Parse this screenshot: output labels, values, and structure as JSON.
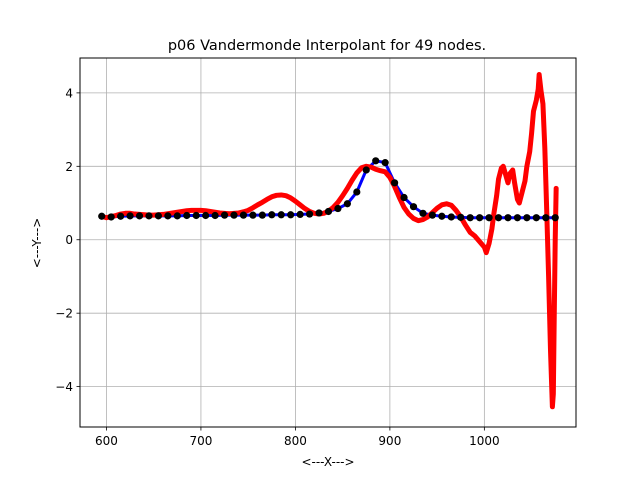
{
  "chart_data": {
    "type": "line",
    "title": "p06 Vandermonde Interpolant for 49 nodes.",
    "xlabel": "<---X--->",
    "ylabel": "<---Y--->",
    "xlim": [
      572,
      1097
    ],
    "ylim": [
      -5.1,
      4.95
    ],
    "xticks": [
      600,
      700,
      800,
      900,
      1000
    ],
    "yticks": [
      -4,
      -2,
      0,
      2,
      4
    ],
    "grid": true,
    "legend": "none",
    "series": [
      {
        "role": "data",
        "color": "#0000ff",
        "x": [
          595,
          605,
          615,
          625,
          635,
          645,
          655,
          665,
          675,
          685,
          695,
          705,
          715,
          725,
          735,
          745,
          755,
          765,
          775,
          785,
          795,
          805,
          815,
          825,
          835,
          845,
          855,
          865,
          875,
          885,
          895,
          905,
          915,
          925,
          935,
          945,
          955,
          965,
          975,
          985,
          995,
          1005,
          1015,
          1025,
          1035,
          1045,
          1055,
          1065,
          1075
        ],
        "y": [
          0.64,
          0.62,
          0.64,
          0.65,
          0.65,
          0.65,
          0.65,
          0.65,
          0.65,
          0.66,
          0.66,
          0.66,
          0.66,
          0.67,
          0.67,
          0.67,
          0.67,
          0.67,
          0.68,
          0.68,
          0.68,
          0.69,
          0.7,
          0.73,
          0.77,
          0.85,
          0.98,
          1.3,
          1.9,
          2.15,
          2.1,
          1.55,
          1.15,
          0.9,
          0.72,
          0.67,
          0.64,
          0.62,
          0.61,
          0.6,
          0.6,
          0.6,
          0.6,
          0.6,
          0.6,
          0.6,
          0.6,
          0.6,
          0.6
        ]
      },
      {
        "role": "nodes",
        "color": "#000000",
        "x": [
          595,
          605,
          615,
          625,
          635,
          645,
          655,
          665,
          675,
          685,
          695,
          705,
          715,
          725,
          735,
          745,
          755,
          765,
          775,
          785,
          795,
          805,
          815,
          825,
          835,
          845,
          855,
          865,
          875,
          885,
          895,
          905,
          915,
          925,
          935,
          945,
          955,
          965,
          975,
          985,
          995,
          1005,
          1015,
          1025,
          1035,
          1045,
          1055,
          1065,
          1075
        ],
        "y": [
          0.64,
          0.62,
          0.64,
          0.65,
          0.65,
          0.65,
          0.65,
          0.65,
          0.65,
          0.66,
          0.66,
          0.66,
          0.66,
          0.67,
          0.67,
          0.67,
          0.67,
          0.67,
          0.68,
          0.68,
          0.68,
          0.69,
          0.7,
          0.73,
          0.77,
          0.85,
          0.98,
          1.3,
          1.9,
          2.15,
          2.1,
          1.55,
          1.15,
          0.9,
          0.72,
          0.67,
          0.64,
          0.62,
          0.61,
          0.6,
          0.6,
          0.6,
          0.6,
          0.6,
          0.6,
          0.6,
          0.6,
          0.6,
          0.6
        ]
      },
      {
        "role": "interpolant",
        "color": "#ff0000",
        "x": [
          595,
          600,
          605,
          610,
          615,
          620,
          625,
          630,
          635,
          640,
          645,
          650,
          655,
          660,
          665,
          670,
          675,
          680,
          685,
          690,
          695,
          700,
          705,
          710,
          715,
          720,
          725,
          730,
          735,
          740,
          745,
          750,
          755,
          760,
          765,
          770,
          775,
          780,
          785,
          790,
          795,
          800,
          805,
          810,
          815,
          820,
          825,
          830,
          835,
          840,
          845,
          850,
          855,
          860,
          865,
          870,
          875,
          880,
          885,
          890,
          895,
          900,
          905,
          910,
          915,
          920,
          925,
          930,
          935,
          940,
          945,
          950,
          955,
          960,
          965,
          970,
          975,
          980,
          985,
          990,
          995,
          1000,
          1002,
          1005,
          1008,
          1010,
          1013,
          1015,
          1018,
          1020,
          1022,
          1025,
          1027,
          1030,
          1032,
          1035,
          1037,
          1040,
          1043,
          1045,
          1048,
          1050,
          1052,
          1055,
          1057,
          1058,
          1060,
          1062,
          1064,
          1066,
          1068,
          1070,
          1072,
          1073,
          1074,
          1075,
          1076
        ],
        "y": [
          0.64,
          0.6,
          0.63,
          0.66,
          0.7,
          0.72,
          0.72,
          0.7,
          0.69,
          0.68,
          0.67,
          0.67,
          0.68,
          0.69,
          0.71,
          0.73,
          0.75,
          0.77,
          0.79,
          0.8,
          0.8,
          0.8,
          0.79,
          0.77,
          0.75,
          0.73,
          0.72,
          0.71,
          0.72,
          0.73,
          0.76,
          0.8,
          0.87,
          0.95,
          1.02,
          1.1,
          1.17,
          1.21,
          1.22,
          1.2,
          1.14,
          1.05,
          0.95,
          0.85,
          0.77,
          0.72,
          0.7,
          0.72,
          0.78,
          0.88,
          1.02,
          1.2,
          1.4,
          1.62,
          1.82,
          1.96,
          2.0,
          1.98,
          1.92,
          1.88,
          1.85,
          1.7,
          1.45,
          1.15,
          0.88,
          0.7,
          0.58,
          0.52,
          0.55,
          0.62,
          0.74,
          0.86,
          0.95,
          0.98,
          0.94,
          0.8,
          0.62,
          0.4,
          0.2,
          0.1,
          -0.05,
          -0.2,
          -0.35,
          -0.1,
          0.3,
          0.7,
          1.2,
          1.65,
          1.95,
          2.0,
          1.82,
          1.55,
          1.8,
          1.9,
          1.55,
          1.1,
          1.0,
          1.3,
          1.6,
          2.0,
          2.4,
          2.9,
          3.5,
          3.8,
          4.1,
          4.5,
          4.05,
          3.7,
          2.5,
          0.8,
          -1.0,
          -3.0,
          -4.55,
          -4.2,
          -2.0,
          0.0,
          1.4
        ]
      }
    ]
  }
}
